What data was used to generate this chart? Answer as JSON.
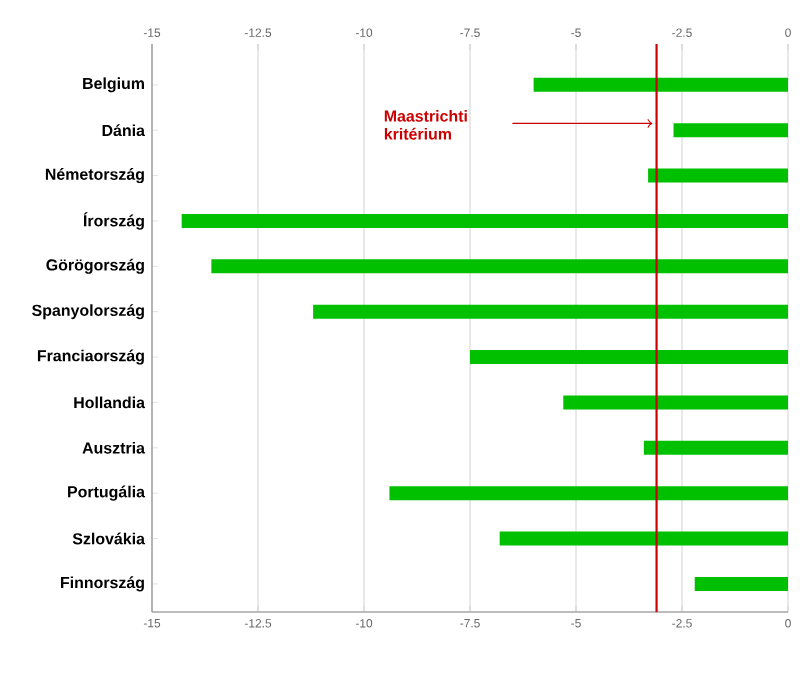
{
  "chart_data": {
    "type": "bar",
    "orientation": "horizontal",
    "categories": [
      "Belgium",
      "Dánia",
      "Németország",
      "Írország",
      "Görögország",
      "Spanyolország",
      "Franciaország",
      "Hollandia",
      "Ausztria",
      "Portugália",
      "Szlovákia",
      "Finnország"
    ],
    "values": [
      -6.0,
      -2.7,
      -3.3,
      -14.3,
      -13.6,
      -11.2,
      -7.5,
      -5.3,
      -3.4,
      -9.4,
      -6.8,
      -2.2
    ],
    "color": "#00c000",
    "xlim": [
      -15,
      0
    ],
    "xticks": [
      -15,
      -12.5,
      -10,
      -7.5,
      -5,
      -2.5,
      0
    ],
    "x2lim": [
      -15,
      0
    ],
    "x2ticks": [
      -15,
      -12.5,
      -10,
      -7.5,
      -5,
      -2.5,
      0
    ],
    "grid": "x",
    "ref_lines": [
      {
        "axis": "x",
        "value": -3.1,
        "label": "Maastrichti kritérium",
        "color": "#cc0000"
      }
    ]
  }
}
